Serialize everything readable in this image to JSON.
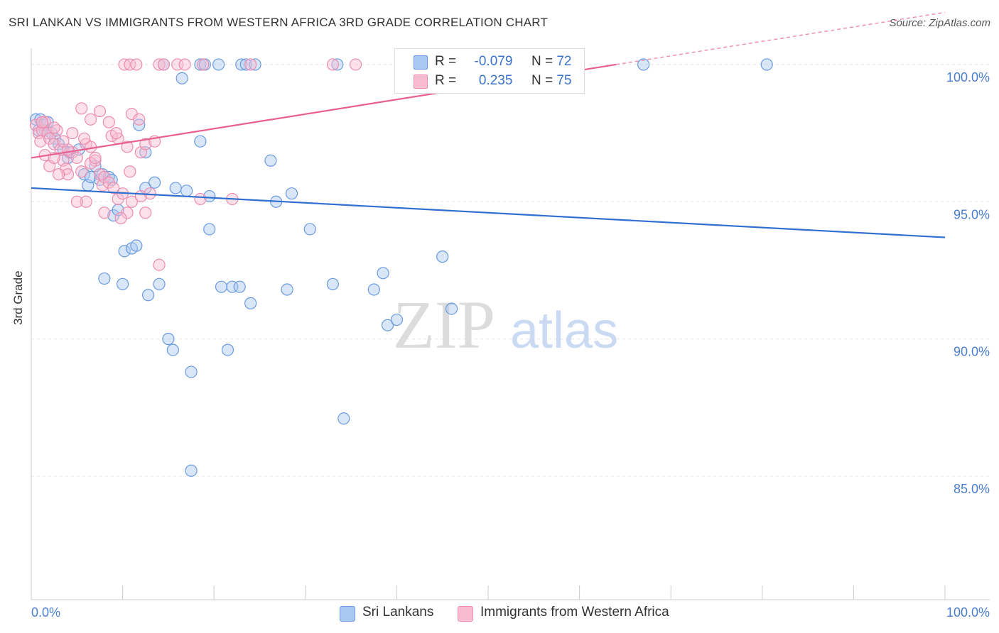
{
  "title": "SRI LANKAN VS IMMIGRANTS FROM WESTERN AFRICA 3RD GRADE CORRELATION CHART",
  "source": "Source: ZipAtlas.com",
  "watermark": {
    "zip": "ZIP",
    "atlas": "atlas"
  },
  "legend": {
    "r_label": "R =",
    "n_label": "N =",
    "series": [
      {
        "name": "Sri Lankans",
        "r": "-0.079",
        "n": "72",
        "color": "#a8c8f0",
        "stroke": "#6a9be0"
      },
      {
        "name": "Immigrants from Western Africa",
        "r": "0.235",
        "n": "75",
        "color": "#f8bcd0",
        "stroke": "#ec8db0"
      }
    ]
  },
  "chart_data": {
    "type": "scatter",
    "title": "SRI LANKAN VS IMMIGRANTS FROM WESTERN AFRICA 3RD GRADE CORRELATION CHART",
    "xlabel": "",
    "ylabel": "3rd Grade",
    "xlim": [
      0,
      100
    ],
    "ylim": [
      80.5,
      100.8
    ],
    "x_tick_labels": [
      "0.0%",
      "100.0%"
    ],
    "y_ticks": [
      100,
      95,
      90,
      85
    ],
    "y_tick_labels": [
      "100.0%",
      "95.0%",
      "90.0%",
      "85.0%"
    ],
    "series": [
      {
        "name": "Sri Lankans",
        "color": "#a8c8f0",
        "stroke": "#6a9be0",
        "trend": {
          "x": [
            0,
            100
          ],
          "y": [
            95.5,
            93.7
          ],
          "color": "#2f6fd0"
        },
        "points": [
          [
            0.5,
            98.0
          ],
          [
            0.8,
            97.6
          ],
          [
            1.0,
            98.0
          ],
          [
            1.3,
            97.8
          ],
          [
            1.5,
            97.6
          ],
          [
            1.8,
            97.9
          ],
          [
            2.2,
            97.5
          ],
          [
            2.6,
            97.3
          ],
          [
            3.0,
            97.1
          ],
          [
            3.5,
            96.9
          ],
          [
            4.0,
            96.6
          ],
          [
            4.2,
            96.8
          ],
          [
            5.2,
            96.9
          ],
          [
            5.8,
            96.0
          ],
          [
            6.2,
            95.6
          ],
          [
            6.5,
            95.9
          ],
          [
            7.0,
            96.3
          ],
          [
            7.5,
            95.8
          ],
          [
            7.8,
            96.0
          ],
          [
            8.5,
            95.9
          ],
          [
            8.8,
            95.8
          ],
          [
            9.0,
            94.5
          ],
          [
            9.5,
            94.7
          ],
          [
            10.2,
            93.2
          ],
          [
            11.0,
            93.3
          ],
          [
            11.5,
            93.4
          ],
          [
            10.0,
            92.0
          ],
          [
            8.0,
            92.2
          ],
          [
            12.8,
            91.6
          ],
          [
            14.0,
            92.0
          ],
          [
            12.5,
            95.5
          ],
          [
            13.5,
            95.7
          ],
          [
            15.8,
            95.5
          ],
          [
            17.0,
            95.4
          ],
          [
            11.8,
            97.8
          ],
          [
            12.5,
            96.8
          ],
          [
            18.5,
            97.2
          ],
          [
            19.5,
            95.2
          ],
          [
            19.5,
            94.0
          ],
          [
            22.0,
            91.9
          ],
          [
            22.8,
            91.9
          ],
          [
            24.0,
            91.3
          ],
          [
            20.8,
            91.9
          ],
          [
            26.2,
            96.5
          ],
          [
            26.8,
            95.0
          ],
          [
            28.0,
            91.8
          ],
          [
            28.5,
            95.3
          ],
          [
            30.5,
            94.0
          ],
          [
            33.0,
            92.0
          ],
          [
            34.2,
            87.1
          ],
          [
            37.5,
            91.8
          ],
          [
            38.5,
            92.4
          ],
          [
            39.0,
            90.5
          ],
          [
            40.0,
            90.7
          ],
          [
            45.0,
            93.0
          ],
          [
            46.0,
            91.1
          ],
          [
            15.0,
            90.0
          ],
          [
            15.5,
            89.6
          ],
          [
            17.5,
            88.8
          ],
          [
            21.5,
            89.6
          ],
          [
            17.5,
            85.2
          ],
          [
            16.5,
            99.5
          ],
          [
            14.5,
            100.0
          ],
          [
            18.5,
            100.0
          ],
          [
            19.0,
            100.0
          ],
          [
            20.5,
            100.0
          ],
          [
            23.0,
            100.0
          ],
          [
            23.5,
            100.0
          ],
          [
            24.5,
            100.0
          ],
          [
            33.5,
            100.0
          ],
          [
            67.0,
            100.0
          ],
          [
            80.5,
            100.0
          ]
        ]
      },
      {
        "name": "Immigrants from Western Africa",
        "color": "#f8bcd0",
        "stroke": "#ec8db0",
        "trend": {
          "x": [
            0,
            64
          ],
          "y": [
            96.6,
            100.0
          ],
          "color": "#e8608f",
          "dashed_to": [
            100,
            101.9
          ]
        },
        "points": [
          [
            0.5,
            97.8
          ],
          [
            0.8,
            97.5
          ],
          [
            1.2,
            97.6
          ],
          [
            1.5,
            97.9
          ],
          [
            1.8,
            97.5
          ],
          [
            1.0,
            97.2
          ],
          [
            2.0,
            97.3
          ],
          [
            2.5,
            97.1
          ],
          [
            2.8,
            97.6
          ],
          [
            3.2,
            96.9
          ],
          [
            3.5,
            96.5
          ],
          [
            3.8,
            96.2
          ],
          [
            4.0,
            96.0
          ],
          [
            4.5,
            96.8
          ],
          [
            5.0,
            96.6
          ],
          [
            5.5,
            96.1
          ],
          [
            6.0,
            97.1
          ],
          [
            6.5,
            97.0
          ],
          [
            7.0,
            96.5
          ],
          [
            7.5,
            96.0
          ],
          [
            7.8,
            95.6
          ],
          [
            8.0,
            95.9
          ],
          [
            8.5,
            95.7
          ],
          [
            9.0,
            95.5
          ],
          [
            9.5,
            95.1
          ],
          [
            10.0,
            95.3
          ],
          [
            10.5,
            94.6
          ],
          [
            11.0,
            95.0
          ],
          [
            12.0,
            95.2
          ],
          [
            12.5,
            94.6
          ],
          [
            13.0,
            95.3
          ],
          [
            4.5,
            97.5
          ],
          [
            5.5,
            98.4
          ],
          [
            6.5,
            98.0
          ],
          [
            7.5,
            98.3
          ],
          [
            8.5,
            97.9
          ],
          [
            9.5,
            97.3
          ],
          [
            10.5,
            97.0
          ],
          [
            11.0,
            98.2
          ],
          [
            11.8,
            98.0
          ],
          [
            12.0,
            96.8
          ],
          [
            12.5,
            97.1
          ],
          [
            13.5,
            97.2
          ],
          [
            10.8,
            96.1
          ],
          [
            6.0,
            95.0
          ],
          [
            5.0,
            95.0
          ],
          [
            8.0,
            94.6
          ],
          [
            9.8,
            94.4
          ],
          [
            14.0,
            92.7
          ],
          [
            18.5,
            95.1
          ],
          [
            22.0,
            95.1
          ],
          [
            1.5,
            96.7
          ],
          [
            2.0,
            96.3
          ],
          [
            2.5,
            96.6
          ],
          [
            3.0,
            96.0
          ],
          [
            4.0,
            96.9
          ],
          [
            6.5,
            96.4
          ],
          [
            7.0,
            96.6
          ],
          [
            8.8,
            97.4
          ],
          [
            9.3,
            97.5
          ],
          [
            10.2,
            100.0
          ],
          [
            10.8,
            100.0
          ],
          [
            11.5,
            100.0
          ],
          [
            14.0,
            100.0
          ],
          [
            14.5,
            100.0
          ],
          [
            16.0,
            100.0
          ],
          [
            16.8,
            100.0
          ],
          [
            18.8,
            100.0
          ],
          [
            24.0,
            100.0
          ],
          [
            33.0,
            100.0
          ],
          [
            35.5,
            100.0
          ],
          [
            2.5,
            97.7
          ],
          [
            3.5,
            97.2
          ],
          [
            5.8,
            97.3
          ],
          [
            1.2,
            97.9
          ]
        ]
      }
    ]
  }
}
